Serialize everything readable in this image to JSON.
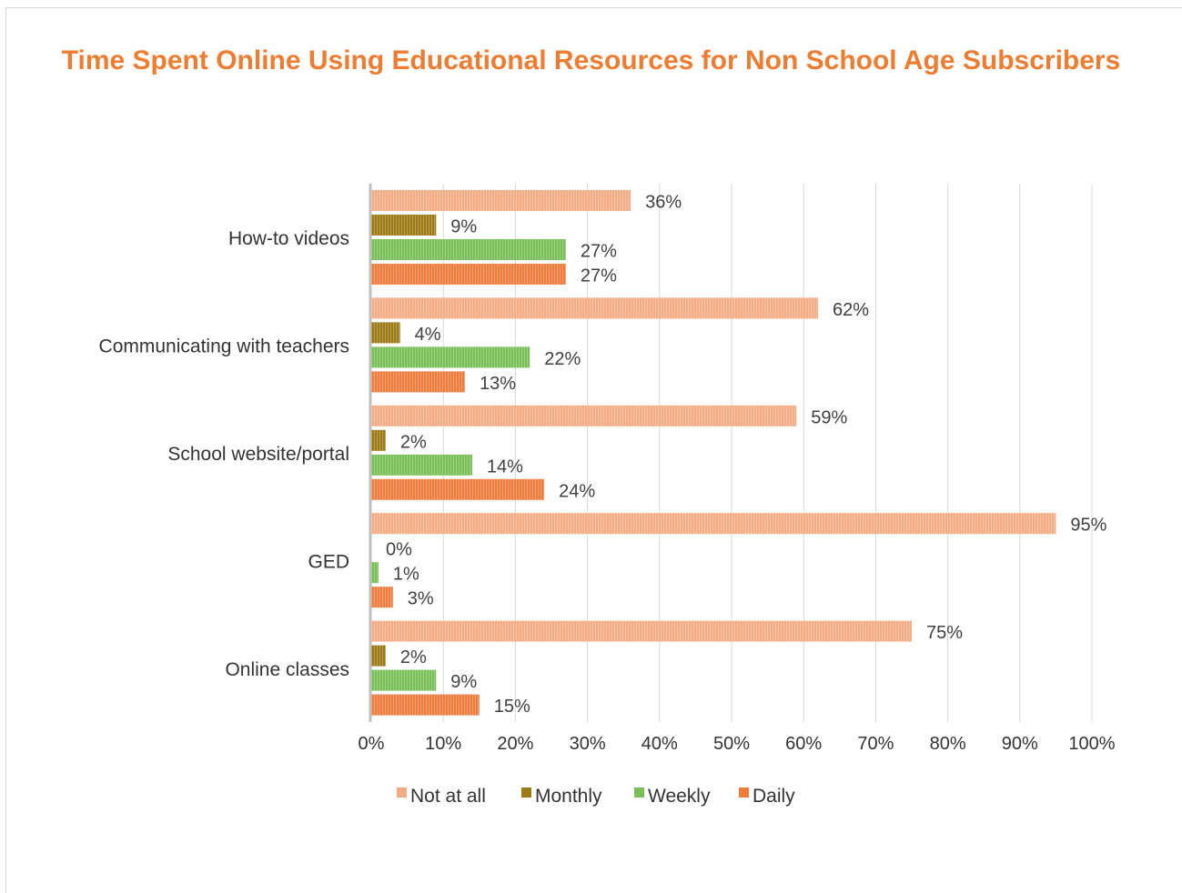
{
  "chart_data": {
    "type": "bar",
    "orientation": "horizontal",
    "title": "Time Spent Online Using Educational Resources for Non School Age Subscribers",
    "categories": [
      "How-to videos",
      "Communicating with teachers",
      "School website/portal",
      "GED",
      "Online classes"
    ],
    "series": [
      {
        "name": "Not at all",
        "color": "#f4ac84",
        "values": [
          36,
          62,
          59,
          95,
          75
        ]
      },
      {
        "name": "Monthly",
        "color": "#9c7a16",
        "values": [
          9,
          4,
          2,
          0,
          2
        ]
      },
      {
        "name": "Weekly",
        "color": "#77bf56",
        "values": [
          27,
          22,
          14,
          1,
          9
        ]
      },
      {
        "name": "Daily",
        "color": "#ef7c3c",
        "values": [
          27,
          13,
          24,
          3,
          15
        ]
      }
    ],
    "xlim": [
      0,
      100
    ],
    "xticks": [
      "0%",
      "10%",
      "20%",
      "30%",
      "40%",
      "50%",
      "60%",
      "70%",
      "80%",
      "90%",
      "100%"
    ],
    "value_suffix": "%",
    "grid": true,
    "legend_position": "bottom"
  }
}
